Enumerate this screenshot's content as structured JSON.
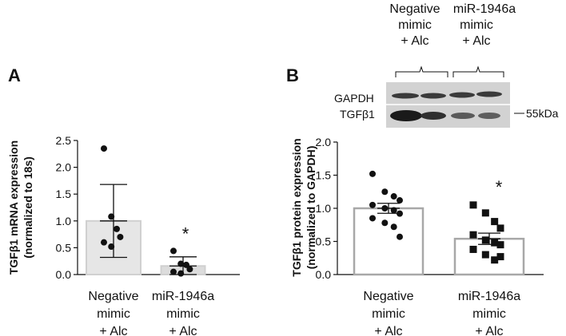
{
  "panels": {
    "a": {
      "label": "A"
    },
    "b": {
      "label": "B"
    }
  },
  "blot": {
    "top_labels": [
      [
        "Negative",
        "mimic",
        "+ Alc"
      ],
      [
        "miR-1946a",
        "mimic",
        "+ Alc"
      ]
    ],
    "rows": [
      "GAPDH",
      "TGFβ1"
    ],
    "marker": "55kDa",
    "colors": {
      "band": "#2a2a2a",
      "membrane": "#cfcfcf"
    }
  },
  "chart_data": [
    {
      "type": "bar",
      "panel": "A",
      "title": "",
      "ylabel_lines": [
        "TGFβ1 mRNA expression",
        "(normalized to 18s)"
      ],
      "xlabel": "",
      "categories": [
        [
          "Negative",
          "mimic",
          "+ Alc"
        ],
        [
          "miR-1946a",
          "mimic",
          "+ Alc"
        ]
      ],
      "values": [
        1.0,
        0.16
      ],
      "error": [
        0.68,
        0.17
      ],
      "error_type": "SD",
      "points": [
        [
          2.35,
          1.08,
          0.85,
          0.7,
          0.6,
          0.52
        ],
        [
          0.44,
          0.2,
          0.18,
          0.1,
          0.05,
          0.02
        ]
      ],
      "marker": "circle",
      "significance": [
        "",
        "*"
      ],
      "ylim": [
        0,
        2.5
      ],
      "yticks": [
        0.0,
        0.5,
        1.0,
        1.5,
        2.0,
        2.5
      ],
      "ytick_labels": [
        "0.0",
        "0.5",
        "1.0",
        "1.5",
        "2.0",
        "2.5"
      ],
      "bar_colors": [
        "#e6e6e6",
        "#dcdcdc"
      ]
    },
    {
      "type": "bar",
      "panel": "B",
      "title": "",
      "ylabel_lines": [
        "TGFβ1 protein expression",
        "(normalized to GAPDH)"
      ],
      "xlabel": "",
      "categories": [
        [
          "Negative",
          "mimic",
          "+ Alc"
        ],
        [
          "miR-1946a",
          "mimic",
          "+ Alc"
        ]
      ],
      "values": [
        1.0,
        0.54
      ],
      "error": [
        0.075,
        0.085
      ],
      "error_type": "SEM",
      "points": [
        [
          1.52,
          1.25,
          1.18,
          1.12,
          1.05,
          1.0,
          0.97,
          0.92,
          0.85,
          0.78,
          0.72,
          0.57
        ],
        [
          1.05,
          0.93,
          0.8,
          0.7,
          0.6,
          0.52,
          0.48,
          0.45,
          0.38,
          0.3,
          0.22,
          0.27
        ]
      ],
      "marker_per_series": [
        "circle",
        "square"
      ],
      "significance": [
        "",
        "*"
      ],
      "ylim": [
        0,
        2.0
      ],
      "yticks": [
        0.0,
        0.5,
        1.0,
        1.5,
        2.0
      ],
      "ytick_labels": [
        "0.0",
        "0.5",
        "1.0",
        "1.5",
        "2.0"
      ],
      "bar_colors": [
        "#ffffff",
        "#ffffff"
      ],
      "bar_stroke": "#a8a8a8"
    }
  ]
}
